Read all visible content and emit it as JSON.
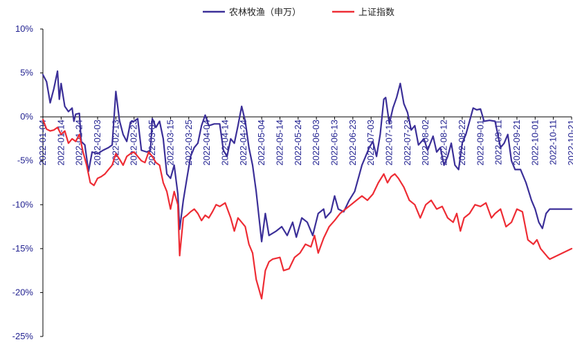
{
  "chart_data": {
    "type": "line",
    "ylim": [
      -25,
      10
    ],
    "y_ticks": [
      10,
      5,
      0,
      -5,
      -10,
      -15,
      -20,
      -25
    ],
    "y_tick_labels": [
      "10%",
      "5%",
      "0%",
      "-5%",
      "-10%",
      "-15%",
      "-20%",
      "-25%"
    ],
    "x_start": "2022-01-04",
    "x_end": "2022-10-21",
    "x_tick_labels": [
      "2022-01-04",
      "2022-01-14",
      "2022-01-24",
      "2022-02-03",
      "2022-02-13",
      "2022-02-23",
      "2022-03-05",
      "2022-03-15",
      "2022-03-25",
      "2022-04-04",
      "2022-04-14",
      "2022-04-24",
      "2022-05-04",
      "2022-05-14",
      "2022-05-24",
      "2022-06-03",
      "2022-06-13",
      "2022-06-23",
      "2022-07-03",
      "2022-07-13",
      "2022-07-23",
      "2022-08-02",
      "2022-08-12",
      "2022-08-22",
      "2022-09-01",
      "2022-09-11",
      "2022-09-21",
      "2022-10-01",
      "2022-10-11",
      "2022-10-21"
    ],
    "legend_position": "top",
    "grid": false,
    "series": [
      {
        "name": "农林牧渔（申万）",
        "color": "#3b2f98",
        "points": [
          [
            "2022-01-04",
            4.8
          ],
          [
            "2022-01-06",
            4.0
          ],
          [
            "2022-01-08",
            1.6
          ],
          [
            "2022-01-10",
            3.2
          ],
          [
            "2022-01-12",
            5.2
          ],
          [
            "2022-01-13",
            2.0
          ],
          [
            "2022-01-14",
            3.8
          ],
          [
            "2022-01-16",
            1.2
          ],
          [
            "2022-01-18",
            0.6
          ],
          [
            "2022-01-20",
            1.0
          ],
          [
            "2022-01-21",
            -0.5
          ],
          [
            "2022-01-22",
            0.3
          ],
          [
            "2022-01-24",
            0.4
          ],
          [
            "2022-01-25",
            -2.8
          ],
          [
            "2022-01-27",
            -3.2
          ],
          [
            "2022-01-29",
            -6.2
          ],
          [
            "2022-01-31",
            -4.0
          ],
          [
            "2022-02-03",
            -4.2
          ],
          [
            "2022-02-06",
            -3.8
          ],
          [
            "2022-02-09",
            -3.5
          ],
          [
            "2022-02-11",
            -3.2
          ],
          [
            "2022-02-13",
            2.9
          ],
          [
            "2022-02-15",
            -0.4
          ],
          [
            "2022-02-17",
            -2.0
          ],
          [
            "2022-02-19",
            -2.8
          ],
          [
            "2022-02-21",
            -0.6
          ],
          [
            "2022-02-23",
            -0.5
          ],
          [
            "2022-02-25",
            -0.2
          ],
          [
            "2022-02-27",
            -3.8
          ],
          [
            "2022-03-02",
            -4.0
          ],
          [
            "2022-03-04",
            -3.8
          ],
          [
            "2022-03-05",
            -0.2
          ],
          [
            "2022-03-07",
            -1.2
          ],
          [
            "2022-03-09",
            -0.5
          ],
          [
            "2022-03-11",
            -2.5
          ],
          [
            "2022-03-13",
            -6.5
          ],
          [
            "2022-03-15",
            -7.0
          ],
          [
            "2022-03-17",
            -5.5
          ],
          [
            "2022-03-19",
            -8.8
          ],
          [
            "2022-03-20",
            -12.8
          ],
          [
            "2022-03-22",
            -9.5
          ],
          [
            "2022-03-24",
            -7.0
          ],
          [
            "2022-03-26",
            -4.5
          ],
          [
            "2022-03-28",
            -3.5
          ],
          [
            "2022-03-30",
            -3.0
          ],
          [
            "2022-04-01",
            -1.0
          ],
          [
            "2022-04-03",
            0.2
          ],
          [
            "2022-04-05",
            -1.0
          ],
          [
            "2022-04-08",
            -0.8
          ],
          [
            "2022-04-11",
            -0.8
          ],
          [
            "2022-04-13",
            -3.8
          ],
          [
            "2022-04-15",
            -4.5
          ],
          [
            "2022-04-17",
            -2.5
          ],
          [
            "2022-04-19",
            -3.0
          ],
          [
            "2022-04-21",
            -1.0
          ],
          [
            "2022-04-23",
            1.2
          ],
          [
            "2022-04-25",
            -0.5
          ],
          [
            "2022-04-27",
            -3.5
          ],
          [
            "2022-04-29",
            -5.5
          ],
          [
            "2022-05-01",
            -8.5
          ],
          [
            "2022-05-04",
            -14.2
          ],
          [
            "2022-05-06",
            -11.0
          ],
          [
            "2022-05-08",
            -13.5
          ],
          [
            "2022-05-12",
            -13.0
          ],
          [
            "2022-05-15",
            -12.5
          ],
          [
            "2022-05-18",
            -13.5
          ],
          [
            "2022-05-21",
            -12.0
          ],
          [
            "2022-05-23",
            -13.7
          ],
          [
            "2022-05-26",
            -11.5
          ],
          [
            "2022-05-29",
            -12.0
          ],
          [
            "2022-06-01",
            -13.5
          ],
          [
            "2022-06-04",
            -11.0
          ],
          [
            "2022-06-07",
            -10.5
          ],
          [
            "2022-06-08",
            -11.5
          ],
          [
            "2022-06-11",
            -10.8
          ],
          [
            "2022-06-13",
            -9.0
          ],
          [
            "2022-06-15",
            -10.5
          ],
          [
            "2022-06-18",
            -10.8
          ],
          [
            "2022-06-21",
            -9.5
          ],
          [
            "2022-06-24",
            -8.5
          ],
          [
            "2022-06-26",
            -7.0
          ],
          [
            "2022-06-28",
            -5.5
          ],
          [
            "2022-06-30",
            -4.5
          ],
          [
            "2022-07-02",
            -3.5
          ],
          [
            "2022-07-04",
            -2.8
          ],
          [
            "2022-07-06",
            -4.5
          ],
          [
            "2022-07-08",
            -2.0
          ],
          [
            "2022-07-10",
            2.0
          ],
          [
            "2022-07-11",
            2.2
          ],
          [
            "2022-07-13",
            -0.8
          ],
          [
            "2022-07-15",
            1.0
          ],
          [
            "2022-07-17",
            2.2
          ],
          [
            "2022-07-19",
            3.8
          ],
          [
            "2022-07-21",
            1.5
          ],
          [
            "2022-07-23",
            0.5
          ],
          [
            "2022-07-25",
            -1.5
          ],
          [
            "2022-07-27",
            -1.0
          ],
          [
            "2022-07-29",
            -3.2
          ],
          [
            "2022-08-01",
            -2.5
          ],
          [
            "2022-08-03",
            -3.8
          ],
          [
            "2022-08-06",
            -2.2
          ],
          [
            "2022-08-08",
            -4.0
          ],
          [
            "2022-08-10",
            -3.5
          ],
          [
            "2022-08-12",
            -5.5
          ],
          [
            "2022-08-14",
            -4.5
          ],
          [
            "2022-08-16",
            -3.0
          ],
          [
            "2022-08-18",
            -5.5
          ],
          [
            "2022-08-20",
            -6.0
          ],
          [
            "2022-08-22",
            -3.0
          ],
          [
            "2022-08-24",
            -2.0
          ],
          [
            "2022-08-26",
            -0.5
          ],
          [
            "2022-08-28",
            1.0
          ],
          [
            "2022-08-30",
            0.8
          ],
          [
            "2022-09-01",
            0.9
          ],
          [
            "2022-09-03",
            -0.5
          ],
          [
            "2022-09-06",
            -0.4
          ],
          [
            "2022-09-09",
            -0.5
          ],
          [
            "2022-09-12",
            -3.5
          ],
          [
            "2022-09-14",
            -3.0
          ],
          [
            "2022-09-16",
            -2.0
          ],
          [
            "2022-09-18",
            -5.0
          ],
          [
            "2022-09-20",
            -6.0
          ],
          [
            "2022-09-23",
            -6.0
          ],
          [
            "2022-09-26",
            -7.5
          ],
          [
            "2022-09-29",
            -9.5
          ],
          [
            "2022-10-01",
            -10.5
          ],
          [
            "2022-10-03",
            -12.0
          ],
          [
            "2022-10-05",
            -12.7
          ],
          [
            "2022-10-07",
            -11.0
          ],
          [
            "2022-10-09",
            -10.5
          ],
          [
            "2022-10-21",
            -10.5
          ]
        ]
      },
      {
        "name": "上证指数",
        "color": "#ee2c34",
        "points": [
          [
            "2022-01-04",
            -0.3
          ],
          [
            "2022-01-06",
            -1.4
          ],
          [
            "2022-01-08",
            -1.6
          ],
          [
            "2022-01-10",
            -1.5
          ],
          [
            "2022-01-12",
            -1.2
          ],
          [
            "2022-01-14",
            -2.0
          ],
          [
            "2022-01-16",
            -1.6
          ],
          [
            "2022-01-18",
            -3.0
          ],
          [
            "2022-01-20",
            -2.5
          ],
          [
            "2022-01-22",
            -2.8
          ],
          [
            "2022-01-24",
            -2.0
          ],
          [
            "2022-01-26",
            -4.0
          ],
          [
            "2022-01-28",
            -5.5
          ],
          [
            "2022-01-30",
            -7.5
          ],
          [
            "2022-02-01",
            -7.8
          ],
          [
            "2022-02-03",
            -7.0
          ],
          [
            "2022-02-05",
            -6.8
          ],
          [
            "2022-02-07",
            -6.5
          ],
          [
            "2022-02-09",
            -6.0
          ],
          [
            "2022-02-11",
            -5.5
          ],
          [
            "2022-02-13",
            -4.2
          ],
          [
            "2022-02-15",
            -4.8
          ],
          [
            "2022-02-17",
            -5.5
          ],
          [
            "2022-02-19",
            -4.5
          ],
          [
            "2022-02-21",
            -4.2
          ],
          [
            "2022-02-23",
            -4.0
          ],
          [
            "2022-02-25",
            -4.5
          ],
          [
            "2022-02-27",
            -5.0
          ],
          [
            "2022-03-01",
            -5.2
          ],
          [
            "2022-03-03",
            -4.0
          ],
          [
            "2022-03-05",
            -4.5
          ],
          [
            "2022-03-07",
            -5.2
          ],
          [
            "2022-03-09",
            -5.5
          ],
          [
            "2022-03-11",
            -7.5
          ],
          [
            "2022-03-13",
            -8.5
          ],
          [
            "2022-03-15",
            -10.5
          ],
          [
            "2022-03-17",
            -8.5
          ],
          [
            "2022-03-19",
            -10.0
          ],
          [
            "2022-03-20",
            -15.8
          ],
          [
            "2022-03-22",
            -11.5
          ],
          [
            "2022-03-24",
            -11.2
          ],
          [
            "2022-03-26",
            -10.8
          ],
          [
            "2022-03-28",
            -10.5
          ],
          [
            "2022-03-30",
            -11.0
          ],
          [
            "2022-04-01",
            -11.8
          ],
          [
            "2022-04-03",
            -11.2
          ],
          [
            "2022-04-05",
            -11.5
          ],
          [
            "2022-04-07",
            -10.8
          ],
          [
            "2022-04-09",
            -10.0
          ],
          [
            "2022-04-11",
            -10.2
          ],
          [
            "2022-04-14",
            -9.8
          ],
          [
            "2022-04-17",
            -11.5
          ],
          [
            "2022-04-19",
            -13.0
          ],
          [
            "2022-04-21",
            -11.5
          ],
          [
            "2022-04-23",
            -12.0
          ],
          [
            "2022-04-25",
            -12.5
          ],
          [
            "2022-04-27",
            -14.5
          ],
          [
            "2022-04-29",
            -15.5
          ],
          [
            "2022-05-01",
            -18.5
          ],
          [
            "2022-05-04",
            -20.7
          ],
          [
            "2022-05-06",
            -17.5
          ],
          [
            "2022-05-08",
            -16.5
          ],
          [
            "2022-05-10",
            -16.2
          ],
          [
            "2022-05-14",
            -16.0
          ],
          [
            "2022-05-16",
            -17.5
          ],
          [
            "2022-05-19",
            -17.3
          ],
          [
            "2022-05-22",
            -16.0
          ],
          [
            "2022-05-25",
            -15.5
          ],
          [
            "2022-05-28",
            -14.5
          ],
          [
            "2022-05-31",
            -14.8
          ],
          [
            "2022-06-02",
            -13.5
          ],
          [
            "2022-06-04",
            -15.5
          ],
          [
            "2022-06-07",
            -13.8
          ],
          [
            "2022-06-10",
            -12.5
          ],
          [
            "2022-06-13",
            -11.8
          ],
          [
            "2022-06-16",
            -11.0
          ],
          [
            "2022-06-19",
            -10.5
          ],
          [
            "2022-06-22",
            -10.0
          ],
          [
            "2022-06-25",
            -9.5
          ],
          [
            "2022-06-28",
            -9.0
          ],
          [
            "2022-07-01",
            -9.5
          ],
          [
            "2022-07-04",
            -8.8
          ],
          [
            "2022-07-07",
            -7.5
          ],
          [
            "2022-07-10",
            -6.5
          ],
          [
            "2022-07-12",
            -7.5
          ],
          [
            "2022-07-14",
            -6.8
          ],
          [
            "2022-07-16",
            -6.5
          ],
          [
            "2022-07-18",
            -7.0
          ],
          [
            "2022-07-21",
            -8.0
          ],
          [
            "2022-07-24",
            -9.5
          ],
          [
            "2022-07-27",
            -10.0
          ],
          [
            "2022-07-30",
            -11.5
          ],
          [
            "2022-08-02",
            -10.0
          ],
          [
            "2022-08-05",
            -9.5
          ],
          [
            "2022-08-08",
            -10.5
          ],
          [
            "2022-08-11",
            -10.2
          ],
          [
            "2022-08-14",
            -11.5
          ],
          [
            "2022-08-17",
            -12.0
          ],
          [
            "2022-08-19",
            -11.0
          ],
          [
            "2022-08-21",
            -13.0
          ],
          [
            "2022-08-23",
            -11.5
          ],
          [
            "2022-08-26",
            -11.0
          ],
          [
            "2022-08-29",
            -10.0
          ],
          [
            "2022-09-01",
            -10.2
          ],
          [
            "2022-09-04",
            -9.8
          ],
          [
            "2022-09-07",
            -11.5
          ],
          [
            "2022-09-09",
            -11.0
          ],
          [
            "2022-09-12",
            -10.5
          ],
          [
            "2022-09-15",
            -12.5
          ],
          [
            "2022-09-18",
            -12.0
          ],
          [
            "2022-09-21",
            -10.5
          ],
          [
            "2022-09-24",
            -10.8
          ],
          [
            "2022-09-27",
            -14.0
          ],
          [
            "2022-09-30",
            -14.5
          ],
          [
            "2022-10-02",
            -14.0
          ],
          [
            "2022-10-04",
            -15.0
          ],
          [
            "2022-10-06",
            -15.5
          ],
          [
            "2022-10-08",
            -16.0
          ],
          [
            "2022-10-09",
            -16.2
          ],
          [
            "2022-10-21",
            -15.0
          ]
        ]
      }
    ]
  }
}
